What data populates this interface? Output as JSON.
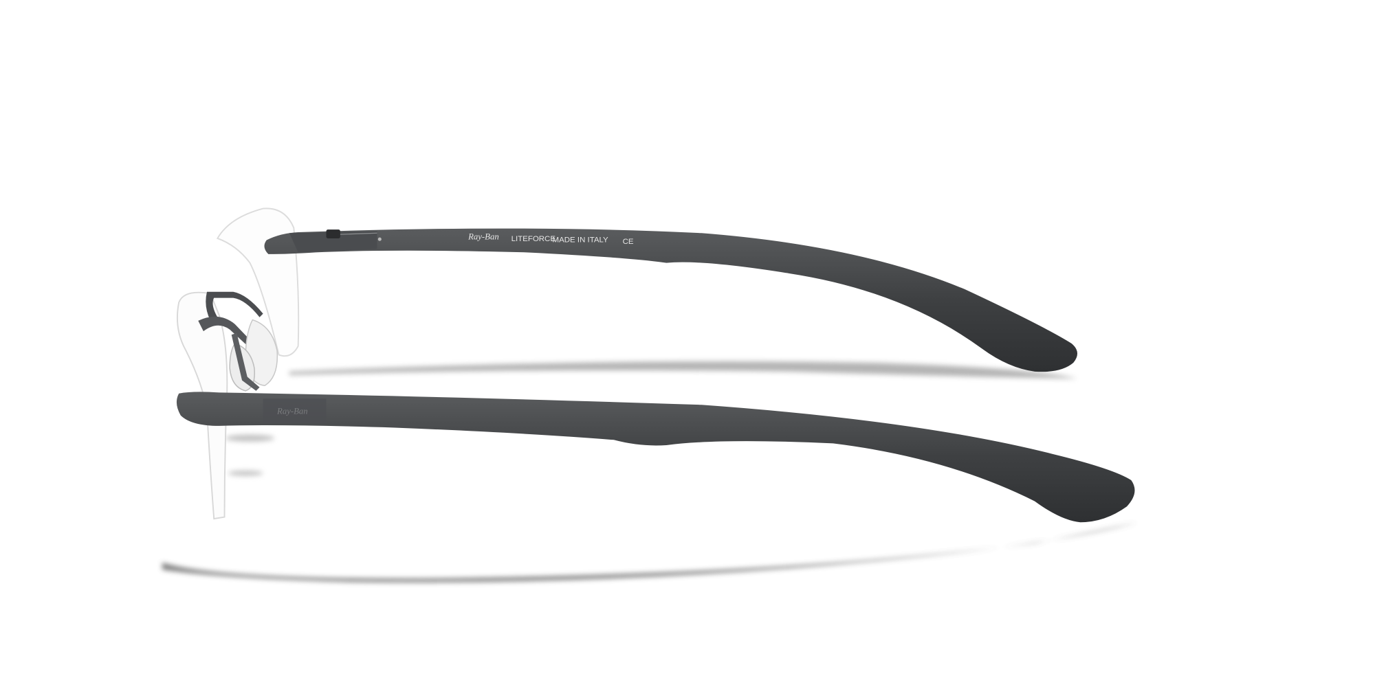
{
  "temple_markings": {
    "brand": "Ray-Ban",
    "model": "LITEFORCE",
    "origin": "MADE IN ITALY",
    "certification": "CE"
  }
}
